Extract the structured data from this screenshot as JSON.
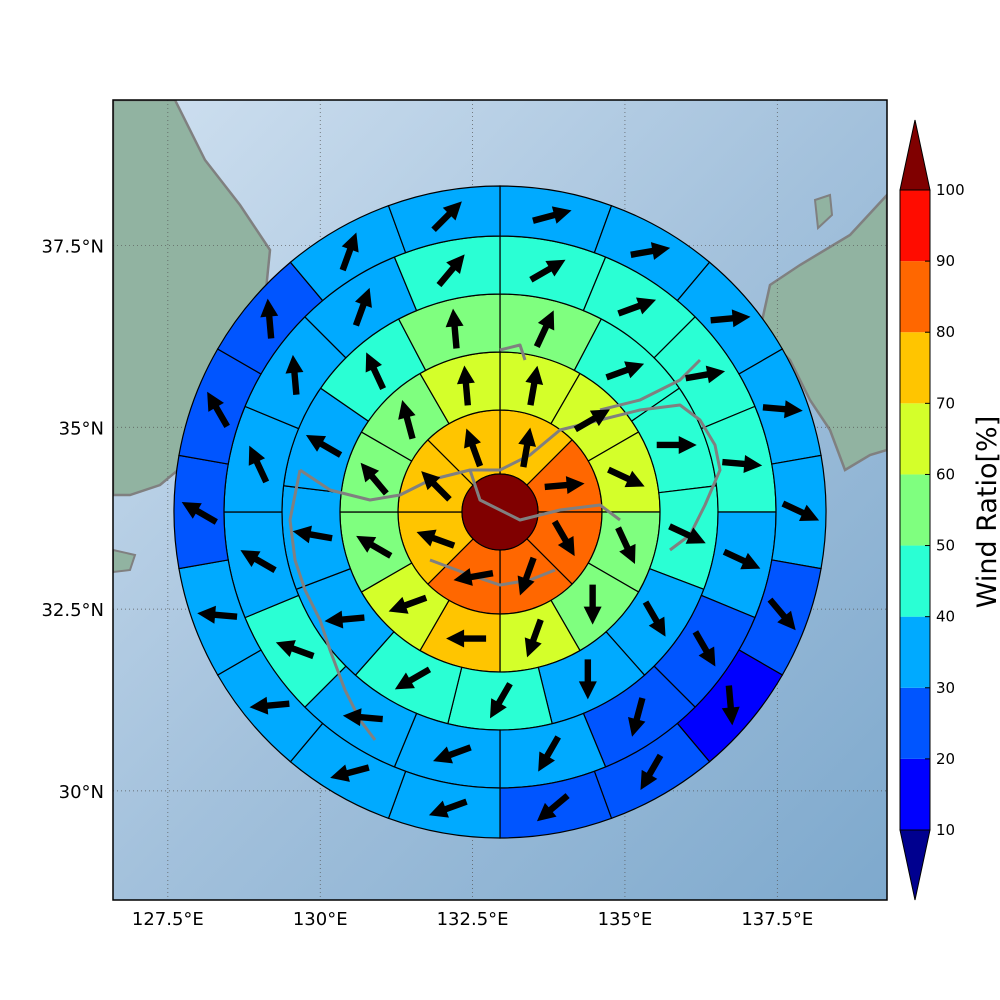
{
  "chart_data": {
    "type": "polar-sector-map",
    "lon_range": [
      126.6,
      139.3
    ],
    "lat_range": [
      28.5,
      39.5
    ],
    "x_ticks": [
      {
        "value": 127.5,
        "label": "127.5°E"
      },
      {
        "value": 130.0,
        "label": "130°E"
      },
      {
        "value": 132.5,
        "label": "132.5°E"
      },
      {
        "value": 135.0,
        "label": "135°E"
      },
      {
        "value": 137.5,
        "label": "137.5°E"
      }
    ],
    "y_ticks": [
      {
        "value": 30.0,
        "label": "30°N"
      },
      {
        "value": 32.5,
        "label": "32.5°N"
      },
      {
        "value": 35.0,
        "label": "35°N"
      },
      {
        "value": 37.5,
        "label": "37.5°N"
      }
    ],
    "grid": true,
    "center_value": 100,
    "rings": [
      {
        "ring": 1,
        "ratio": [
          75,
          85,
          85,
          80,
          80,
          75,
          75,
          70
        ],
        "direction": [
          10,
          85,
          150,
          200,
          260,
          290,
          315,
          340
        ]
      },
      {
        "ring": 2,
        "ratio": [
          65,
          65,
          65,
          55,
          55,
          65,
          75,
          65,
          55,
          50,
          55,
          65
        ],
        "direction": [
          10,
          60,
          115,
          155,
          180,
          200,
          270,
          250,
          300,
          320,
          345,
          355
        ]
      },
      {
        "ring": 3,
        "ratio": [
          55,
          45,
          45,
          40,
          35,
          35,
          45,
          45,
          35,
          35,
          35,
          45,
          55
        ],
        "direction": [
          25,
          70,
          90,
          115,
          150,
          180,
          210,
          240,
          265,
          280,
          300,
          335,
          355
        ]
      },
      {
        "ring": 4,
        "ratio": [
          45,
          45,
          45,
          45,
          35,
          25,
          25,
          35,
          35,
          35,
          45,
          35,
          35,
          35,
          35,
          45
        ],
        "direction": [
          60,
          70,
          80,
          95,
          115,
          150,
          195,
          210,
          250,
          275,
          290,
          300,
          335,
          355,
          20,
          40
        ]
      },
      {
        "ring": 5,
        "ratio": [
          35,
          35,
          35,
          35,
          35,
          25,
          15,
          25,
          25,
          35,
          35,
          35,
          35,
          25,
          25,
          25,
          35,
          35
        ],
        "direction": [
          75,
          80,
          85,
          95,
          115,
          140,
          175,
          210,
          230,
          250,
          255,
          265,
          275,
          300,
          330,
          355,
          20,
          45
        ]
      }
    ],
    "colorbar": {
      "label": "Wind Ratio[%]",
      "ticks": [
        10,
        20,
        30,
        40,
        50,
        60,
        70,
        80,
        90,
        100
      ],
      "colors": [
        "#00008f",
        "#0000ff",
        "#0055ff",
        "#00aaff",
        "#2affd4",
        "#7fff7f",
        "#d4ff2a",
        "#ffc500",
        "#ff6700",
        "#ff0c00",
        "#800000"
      ]
    },
    "ocean_color": "#a8c4dd",
    "land_color": "#8faf9c",
    "coastline_color": "#808080"
  }
}
